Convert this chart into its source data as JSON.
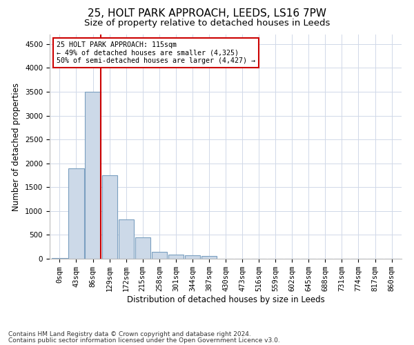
{
  "title_line1": "25, HOLT PARK APPROACH, LEEDS, LS16 7PW",
  "title_line2": "Size of property relative to detached houses in Leeds",
  "xlabel": "Distribution of detached houses by size in Leeds",
  "ylabel": "Number of detached properties",
  "bar_values": [
    20,
    1900,
    3500,
    1750,
    830,
    450,
    150,
    90,
    70,
    60,
    0,
    0,
    0,
    0,
    0,
    0,
    0,
    0,
    0,
    0,
    0
  ],
  "bar_labels": [
    "0sqm",
    "43sqm",
    "86sqm",
    "129sqm",
    "172sqm",
    "215sqm",
    "258sqm",
    "301sqm",
    "344sqm",
    "387sqm",
    "430sqm",
    "473sqm",
    "516sqm",
    "559sqm",
    "602sqm",
    "645sqm",
    "688sqm",
    "731sqm",
    "774sqm",
    "817sqm",
    "860sqm"
  ],
  "bar_color": "#ccd9e8",
  "bar_edge_color": "#7a9fc0",
  "grid_color": "#d0d8e8",
  "vline_color": "#cc0000",
  "annotation_text": "25 HOLT PARK APPROACH: 115sqm\n← 49% of detached houses are smaller (4,325)\n50% of semi-detached houses are larger (4,427) →",
  "annotation_box_color": "white",
  "annotation_box_edge_color": "#cc0000",
  "ylim": [
    0,
    4700
  ],
  "yticks": [
    0,
    500,
    1000,
    1500,
    2000,
    2500,
    3000,
    3500,
    4000,
    4500
  ],
  "footer_line1": "Contains HM Land Registry data © Crown copyright and database right 2024.",
  "footer_line2": "Contains public sector information licensed under the Open Government Licence v3.0.",
  "title_fontsize": 11,
  "subtitle_fontsize": 9.5,
  "label_fontsize": 8.5,
  "tick_fontsize": 7.5,
  "footer_fontsize": 6.5,
  "background_color": "#ffffff"
}
